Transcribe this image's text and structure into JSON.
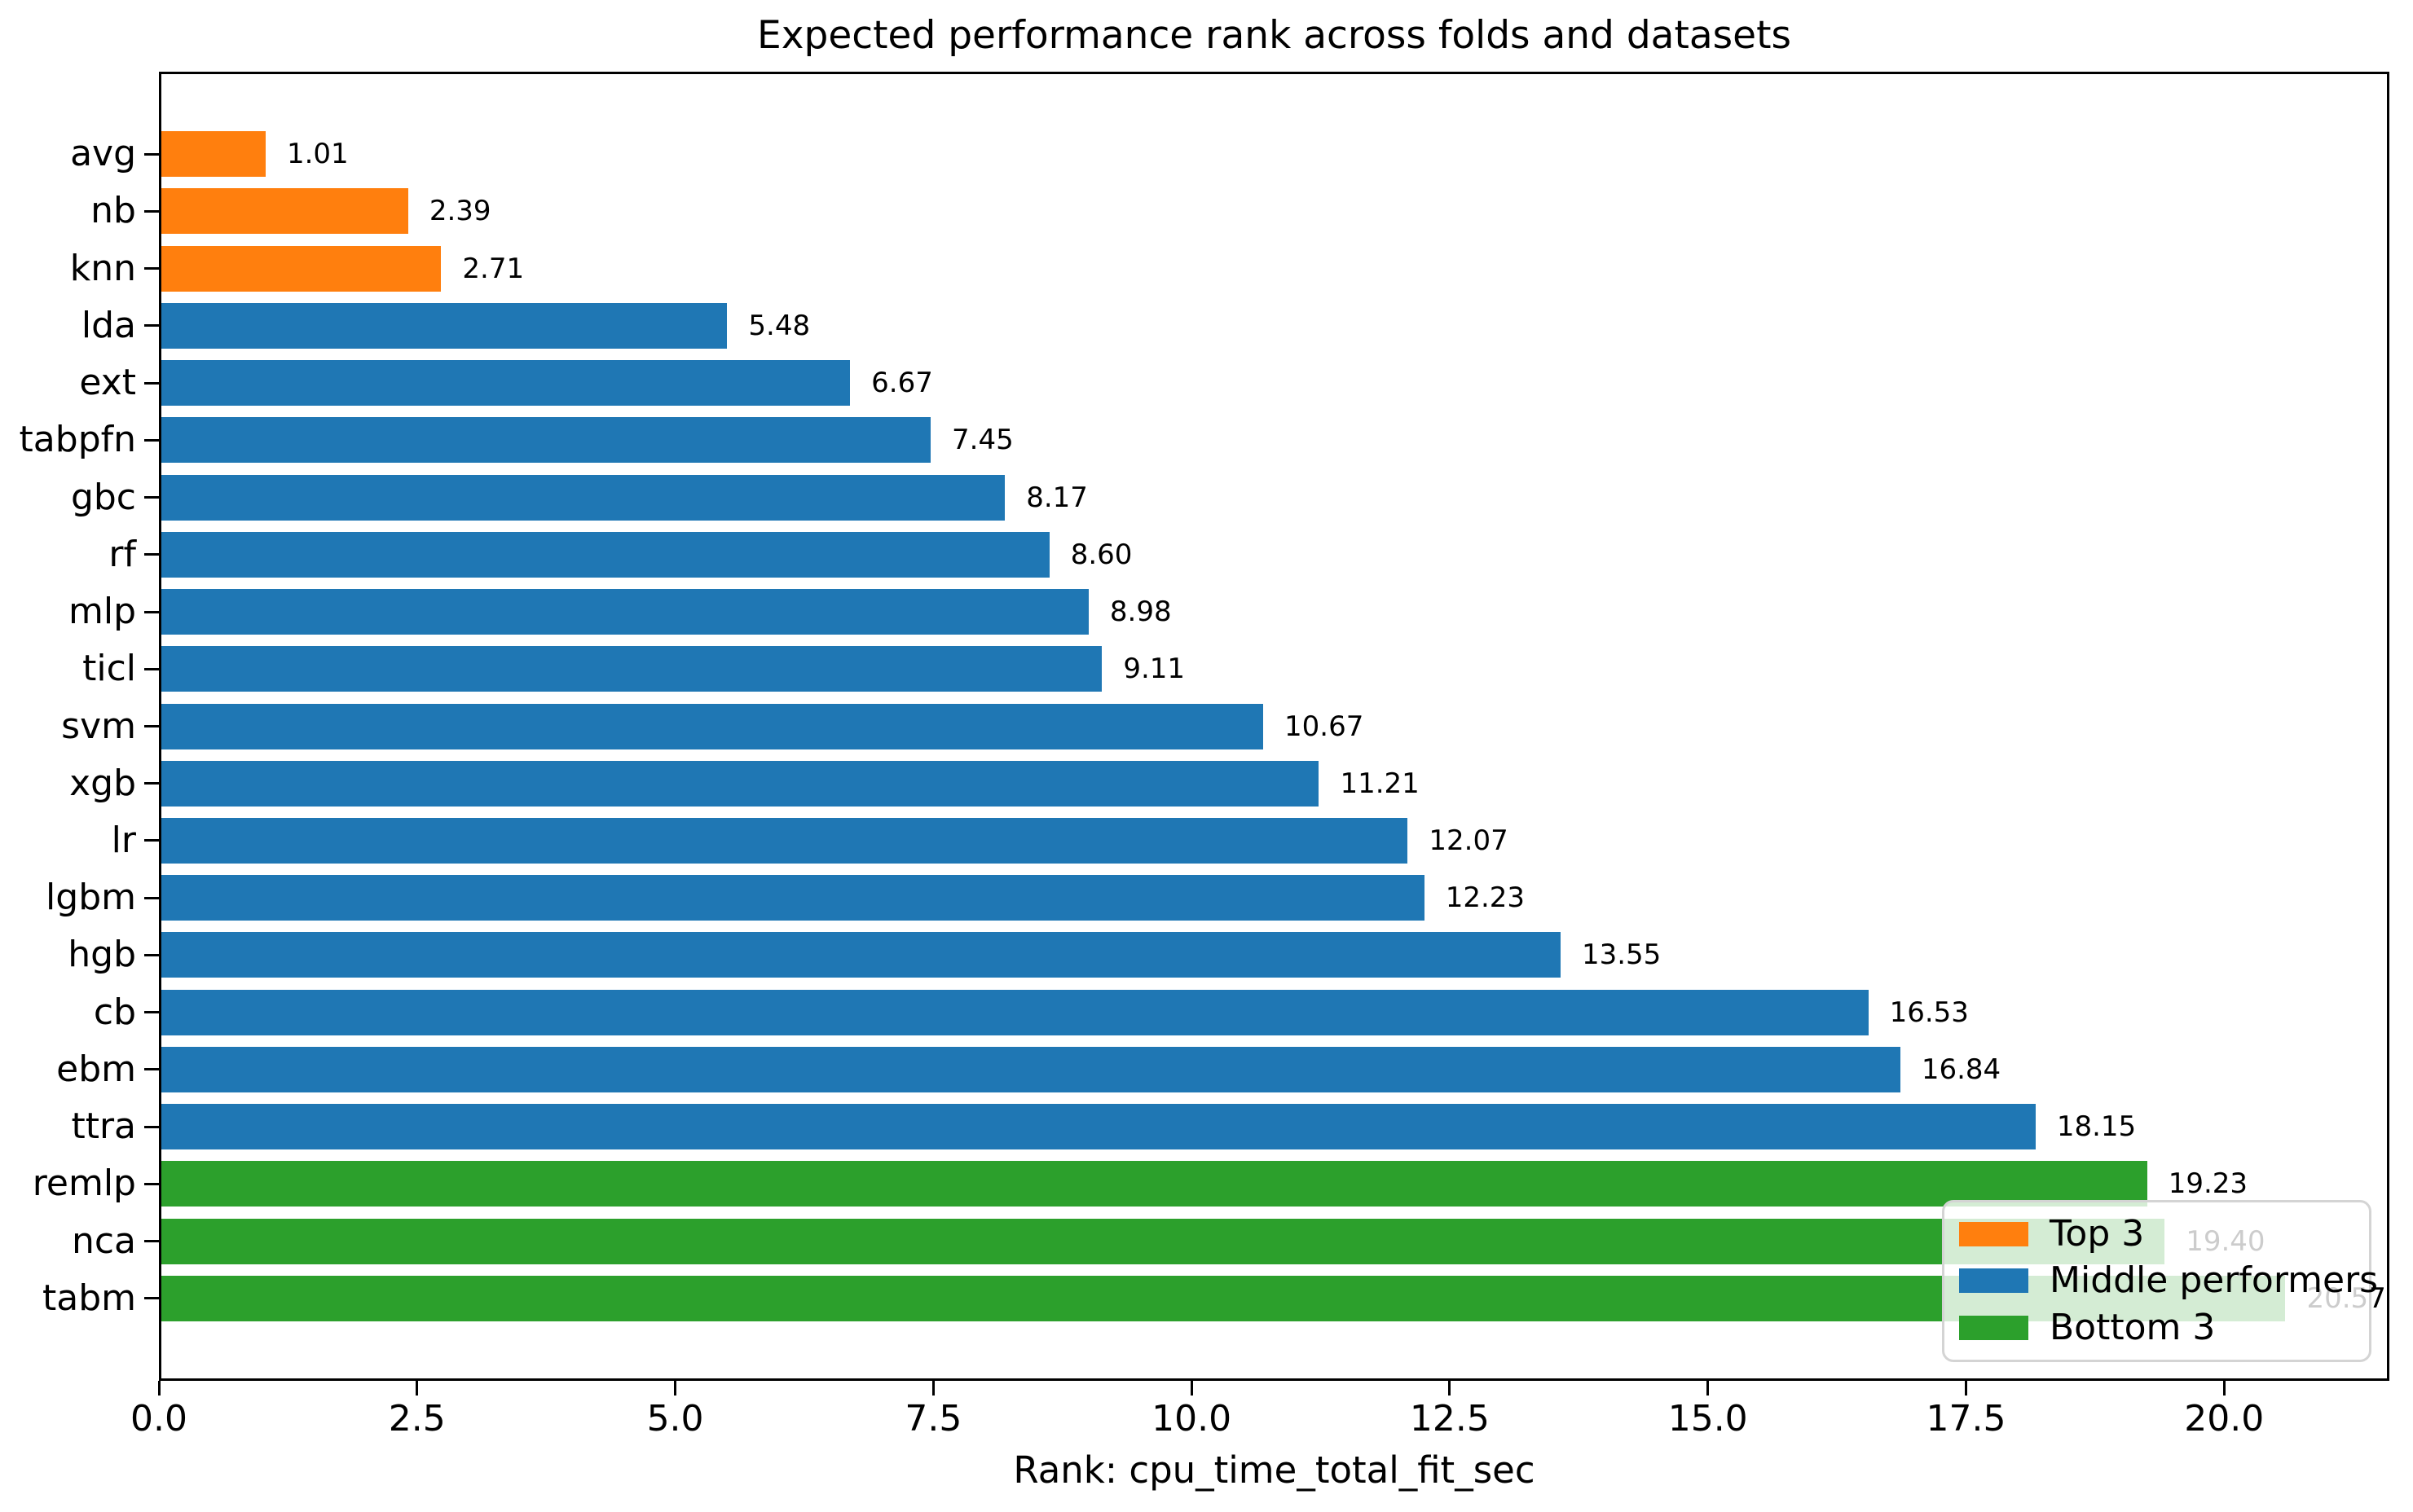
{
  "chart_data": {
    "type": "bar",
    "orientation": "horizontal",
    "title": "Expected performance rank across folds and datasets",
    "xlabel": "Rank: cpu_time_total_fit_sec",
    "categories": [
      "avg",
      "nb",
      "knn",
      "lda",
      "ext",
      "tabpfn",
      "gbc",
      "rf",
      "mlp",
      "ticl",
      "svm",
      "xgb",
      "lr",
      "lgbm",
      "hgb",
      "cb",
      "ebm",
      "ttra",
      "remlp",
      "nca",
      "tabm"
    ],
    "values": [
      1.01,
      2.39,
      2.71,
      5.48,
      6.67,
      7.45,
      8.17,
      8.6,
      8.98,
      9.11,
      10.67,
      11.21,
      12.07,
      12.23,
      13.55,
      16.53,
      16.84,
      18.15,
      19.23,
      19.4,
      20.57
    ],
    "value_labels": [
      "1.01",
      "2.39",
      "2.71",
      "5.48",
      "6.67",
      "7.45",
      "8.17",
      "8.60",
      "8.98",
      "9.11",
      "10.67",
      "11.21",
      "12.07",
      "12.23",
      "13.55",
      "16.53",
      "16.84",
      "18.15",
      "19.23",
      "19.40",
      "20.57"
    ],
    "groups": [
      "top3",
      "top3",
      "top3",
      "middle",
      "middle",
      "middle",
      "middle",
      "middle",
      "middle",
      "middle",
      "middle",
      "middle",
      "middle",
      "middle",
      "middle",
      "middle",
      "middle",
      "middle",
      "bottom3",
      "bottom3",
      "bottom3"
    ],
    "group_colors": {
      "top3": "#ff7f0e",
      "middle": "#1f77b4",
      "bottom3": "#2ca02c"
    },
    "x_ticks": [
      "0.0",
      "2.5",
      "5.0",
      "7.5",
      "10.0",
      "12.5",
      "15.0",
      "17.5",
      "20.0"
    ],
    "xlim": [
      0,
      21.6
    ],
    "grid": false,
    "legend": {
      "position": "lower right",
      "entries": [
        {
          "label": "Top 3",
          "color": "#ff7f0e"
        },
        {
          "label": "Middle performers",
          "color": "#1f77b4"
        },
        {
          "label": "Bottom 3",
          "color": "#2ca02c"
        }
      ]
    }
  }
}
